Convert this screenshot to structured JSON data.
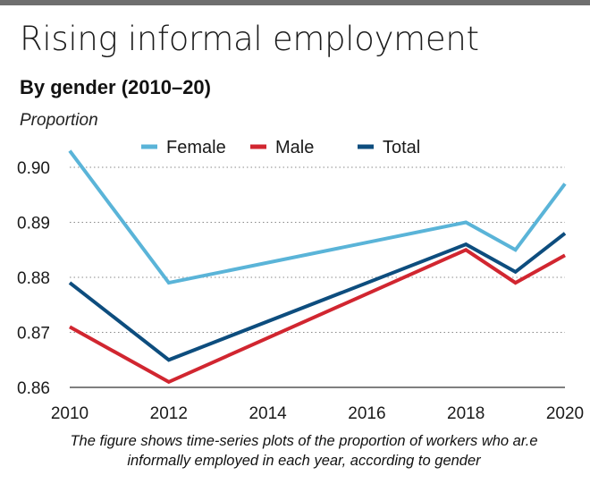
{
  "title": "Rising informal employment",
  "subtitle": "By gender (2010–20)",
  "caption_line1": "The figure shows time-series plots of the proportion of workers who ar.e",
  "caption_line2": "informally employed in each year, according to gender",
  "chart_data": {
    "type": "line",
    "ylabel": "Proportion",
    "xlabel": "",
    "ylim": [
      0.86,
      0.9
    ],
    "xlim": [
      2010,
      2020
    ],
    "yticks": [
      0.86,
      0.87,
      0.88,
      0.89,
      0.9
    ],
    "ytick_labels": [
      "0.86",
      "0.87",
      "0.88",
      "0.89",
      "0.90"
    ],
    "xticks": [
      2010,
      2012,
      2014,
      2016,
      2018,
      2020
    ],
    "grid": "horizontal dotted",
    "legend_position": "top",
    "series": [
      {
        "name": "Female",
        "color": "#5ab4d8",
        "x": [
          2010,
          2012,
          2018,
          2019,
          2020
        ],
        "values": [
          0.903,
          0.879,
          0.89,
          0.885,
          0.897
        ]
      },
      {
        "name": "Male",
        "color": "#d12630",
        "x": [
          2010,
          2012,
          2018,
          2019,
          2020
        ],
        "values": [
          0.871,
          0.861,
          0.885,
          0.879,
          0.884
        ]
      },
      {
        "name": "Total",
        "color": "#0d4d7e",
        "x": [
          2010,
          2012,
          2018,
          2019,
          2020
        ],
        "values": [
          0.879,
          0.865,
          0.886,
          0.881,
          0.888
        ]
      }
    ]
  }
}
